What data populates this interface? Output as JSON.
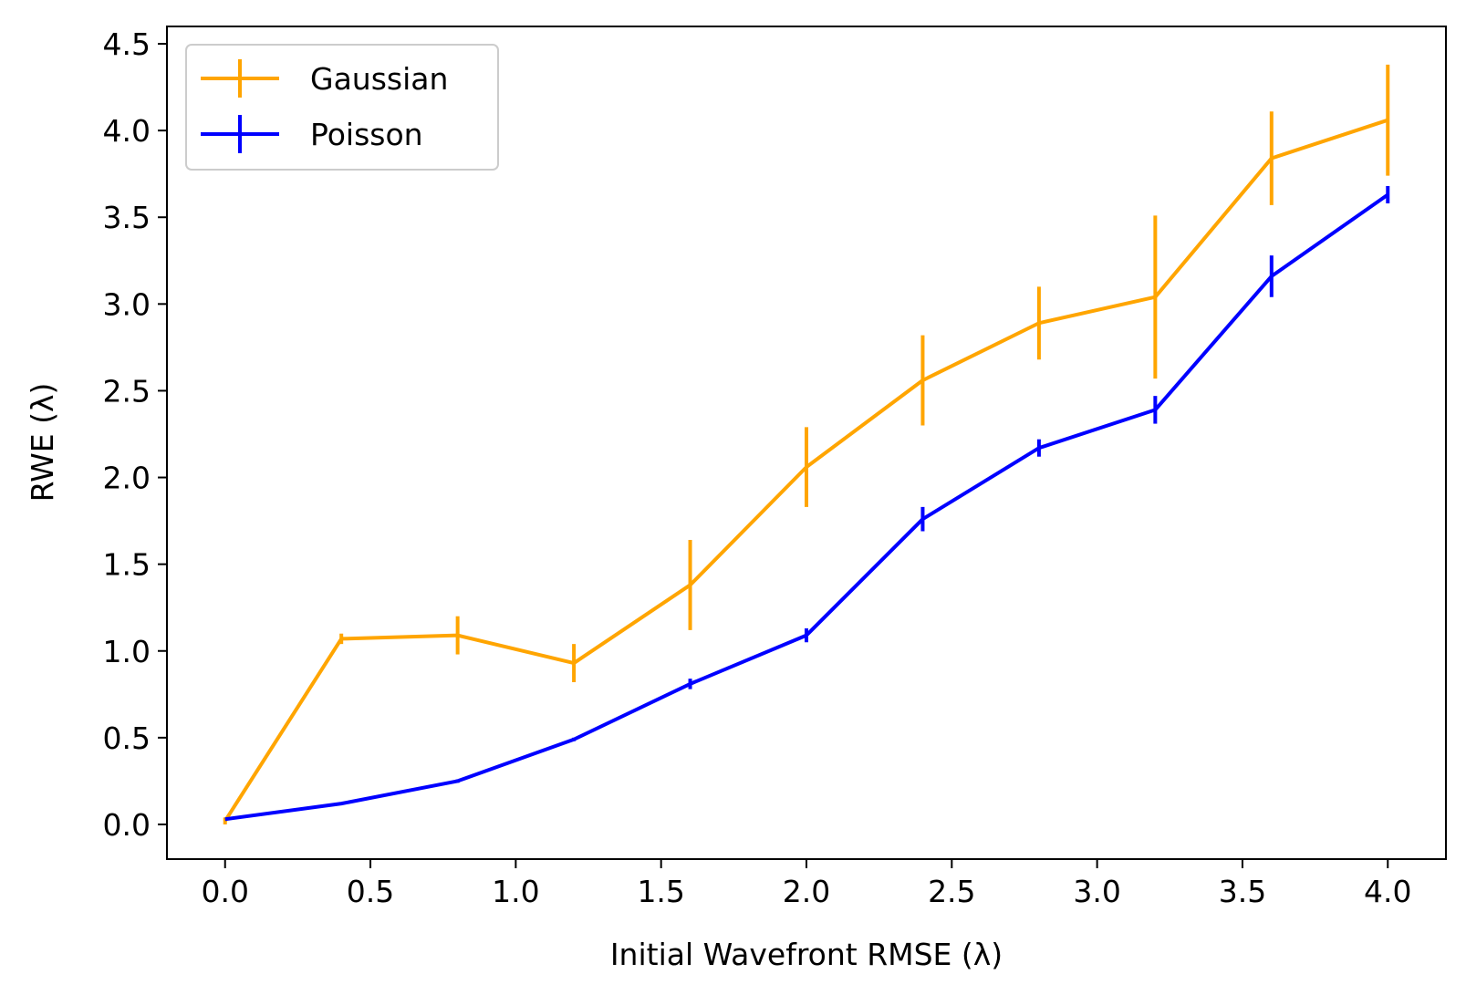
{
  "chart_data": {
    "type": "line",
    "xlabel": "Initial Wavefront RMSE (λ)",
    "ylabel": "RWE (λ)",
    "xlim": [
      -0.2,
      4.2
    ],
    "ylim": [
      -0.2,
      4.6
    ],
    "x_ticks": [
      0.0,
      0.5,
      1.0,
      1.5,
      2.0,
      2.5,
      3.0,
      3.5,
      4.0
    ],
    "x_tick_labels": [
      "0.0",
      "0.5",
      "1.0",
      "1.5",
      "2.0",
      "2.5",
      "3.0",
      "3.5",
      "4.0"
    ],
    "y_ticks": [
      0.0,
      0.5,
      1.0,
      1.5,
      2.0,
      2.5,
      3.0,
      3.5,
      4.0,
      4.5
    ],
    "y_tick_labels": [
      "0.0",
      "0.5",
      "1.0",
      "1.5",
      "2.0",
      "2.5",
      "3.0",
      "3.5",
      "4.0",
      "4.5"
    ],
    "grid": false,
    "legend_position": "top-left",
    "x": [
      0.0,
      0.4,
      0.8,
      1.2,
      1.6,
      2.0,
      2.4,
      2.8,
      3.2,
      3.6,
      4.0
    ],
    "series": [
      {
        "name": "Gaussian",
        "color": "#FFA500",
        "values": [
          0.02,
          1.07,
          1.09,
          0.93,
          1.38,
          2.06,
          2.56,
          2.89,
          3.04,
          3.84,
          4.06
        ],
        "errors": [
          0.02,
          0.03,
          0.11,
          0.11,
          0.26,
          0.23,
          0.26,
          0.21,
          0.47,
          0.27,
          0.32
        ]
      },
      {
        "name": "Poisson",
        "color": "#0000FF",
        "values": [
          0.03,
          0.12,
          0.25,
          0.49,
          0.81,
          1.09,
          1.76,
          2.17,
          2.39,
          3.16,
          3.63
        ],
        "errors": [
          0.0,
          0.0,
          0.01,
          0.01,
          0.03,
          0.04,
          0.07,
          0.05,
          0.08,
          0.12,
          0.05
        ]
      }
    ]
  }
}
